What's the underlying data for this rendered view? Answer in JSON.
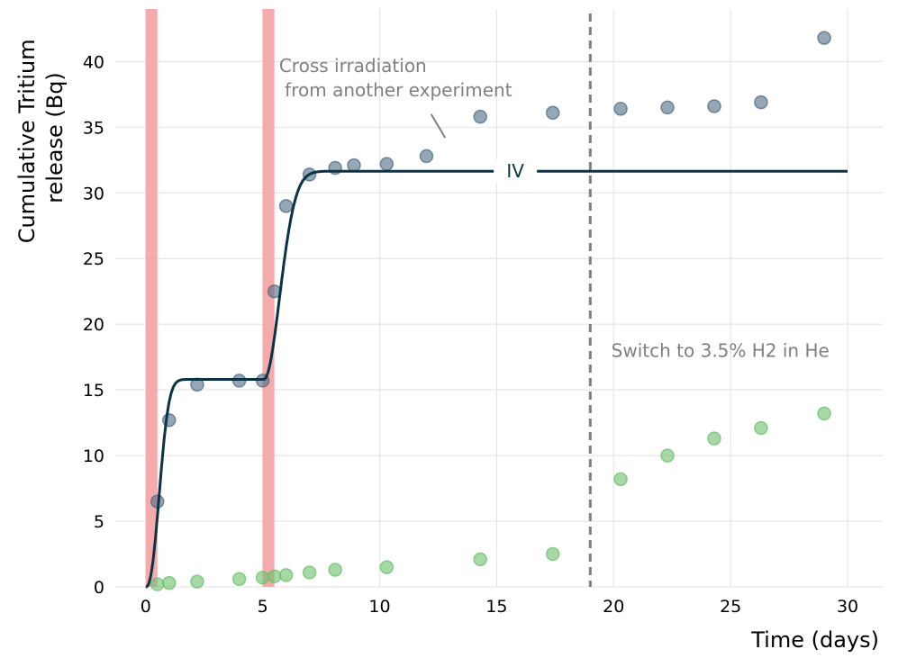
{
  "chart_data": {
    "type": "scatter",
    "xlabel": "Time (days)",
    "ylabel": [
      "Cumulative Tritium",
      "release (Bq)"
    ],
    "xlim": [
      -1.3,
      31.5
    ],
    "ylim": [
      0,
      44
    ],
    "xticks": [
      0,
      5,
      10,
      15,
      20,
      25,
      30
    ],
    "yticks": [
      0,
      5,
      10,
      15,
      20,
      25,
      30,
      35,
      40
    ],
    "grid": true,
    "irradiation_windows": [
      [
        0,
        0.5
      ],
      [
        5,
        5.5
      ]
    ],
    "vline": {
      "x": 19,
      "style": "dashed",
      "color": "#808080"
    },
    "series": [
      {
        "name": "series-gray",
        "color": "#4e6b84",
        "x": [
          0.5,
          1.0,
          2.2,
          4.0,
          5.0,
          5.5,
          6.0,
          7.0,
          8.1,
          8.9,
          10.3,
          12.0,
          14.3,
          17.4,
          20.3,
          22.3,
          24.3,
          26.3,
          29.0
        ],
        "y": [
          6.5,
          12.7,
          15.4,
          15.7,
          15.7,
          22.5,
          29.0,
          31.4,
          31.9,
          32.1,
          32.2,
          32.8,
          35.8,
          36.1,
          36.4,
          36.5,
          36.6,
          36.9,
          41.8
        ]
      },
      {
        "name": "series-green",
        "color": "#6dbf6d",
        "x": [
          0.5,
          1.0,
          2.2,
          4.0,
          5.0,
          5.5,
          6.0,
          7.0,
          8.1,
          10.3,
          14.3,
          17.4,
          20.3,
          22.3,
          24.3,
          26.3,
          29.0
        ],
        "y": [
          0.2,
          0.3,
          0.4,
          0.6,
          0.7,
          0.8,
          0.9,
          1.1,
          1.3,
          1.5,
          2.1,
          2.5,
          8.2,
          10.0,
          11.3,
          12.1,
          13.2
        ]
      }
    ],
    "model_line": {
      "label": "IV",
      "color": "#0b3245",
      "plateau1": 15.8,
      "plateau2": 31.65,
      "x_end": 30,
      "label_x": 15.8
    },
    "annotations": [
      {
        "text": [
          "Cross irradiation",
          " from another experiment"
        ],
        "x": 5.7,
        "y": 39.2,
        "arrow_from": [
          12.2,
          36.0
        ],
        "arrow_to": [
          12.8,
          34.2
        ]
      },
      {
        "text": [
          "Switch to 3.5% H2 in He"
        ],
        "x": 19.9,
        "y": 17.5
      }
    ]
  }
}
